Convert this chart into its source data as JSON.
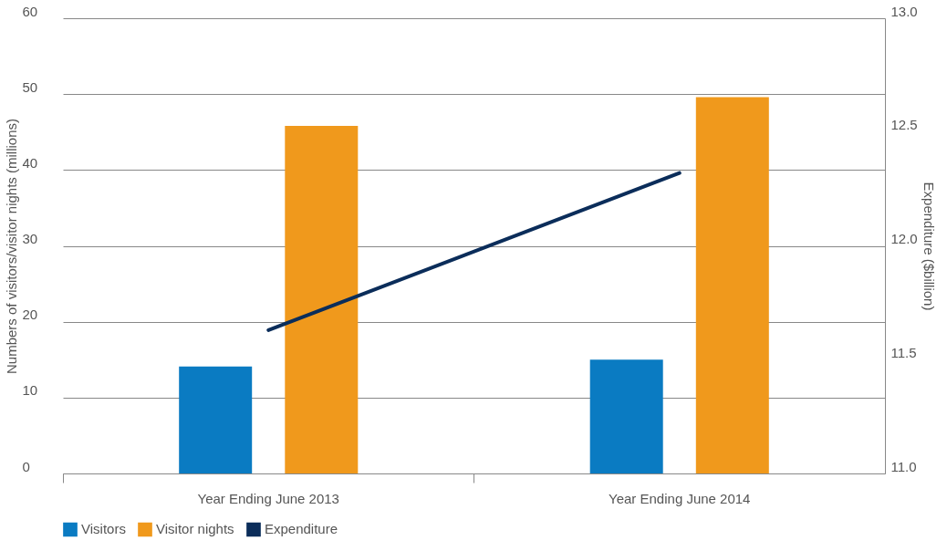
{
  "chart_data": {
    "type": "bar",
    "categories": [
      "Year Ending June 2013",
      "Year Ending June 2014"
    ],
    "series": [
      {
        "name": "Visitors",
        "color": "#0a7bc2",
        "values": [
          14.1,
          15.0
        ]
      },
      {
        "name": "Visitor nights",
        "color": "#f0991c",
        "values": [
          45.8,
          49.6
        ]
      },
      {
        "name": "Expenditure",
        "color": "#0b2d5a",
        "type": "line",
        "axis": "y2",
        "values": [
          11.63,
          12.32
        ]
      }
    ],
    "ylabel": "Numbers of visitors/visitor nights (millions)",
    "y2label": "Expenditure ($billion)",
    "ylim": [
      0,
      60
    ],
    "yticks": [
      0,
      10,
      20,
      30,
      40,
      50,
      60
    ],
    "y2lim": [
      11.0,
      13.0
    ],
    "y2ticks": [
      {
        "value": 11.0,
        "label": "11.0"
      },
      {
        "value": 11.5,
        "label": "11.5"
      },
      {
        "value": 12.0,
        "label": "12.0"
      },
      {
        "value": 12.5,
        "label": "12.5"
      },
      {
        "value": 13.0,
        "label": "13.0"
      }
    ],
    "grid": "y",
    "legend": "bottom"
  }
}
